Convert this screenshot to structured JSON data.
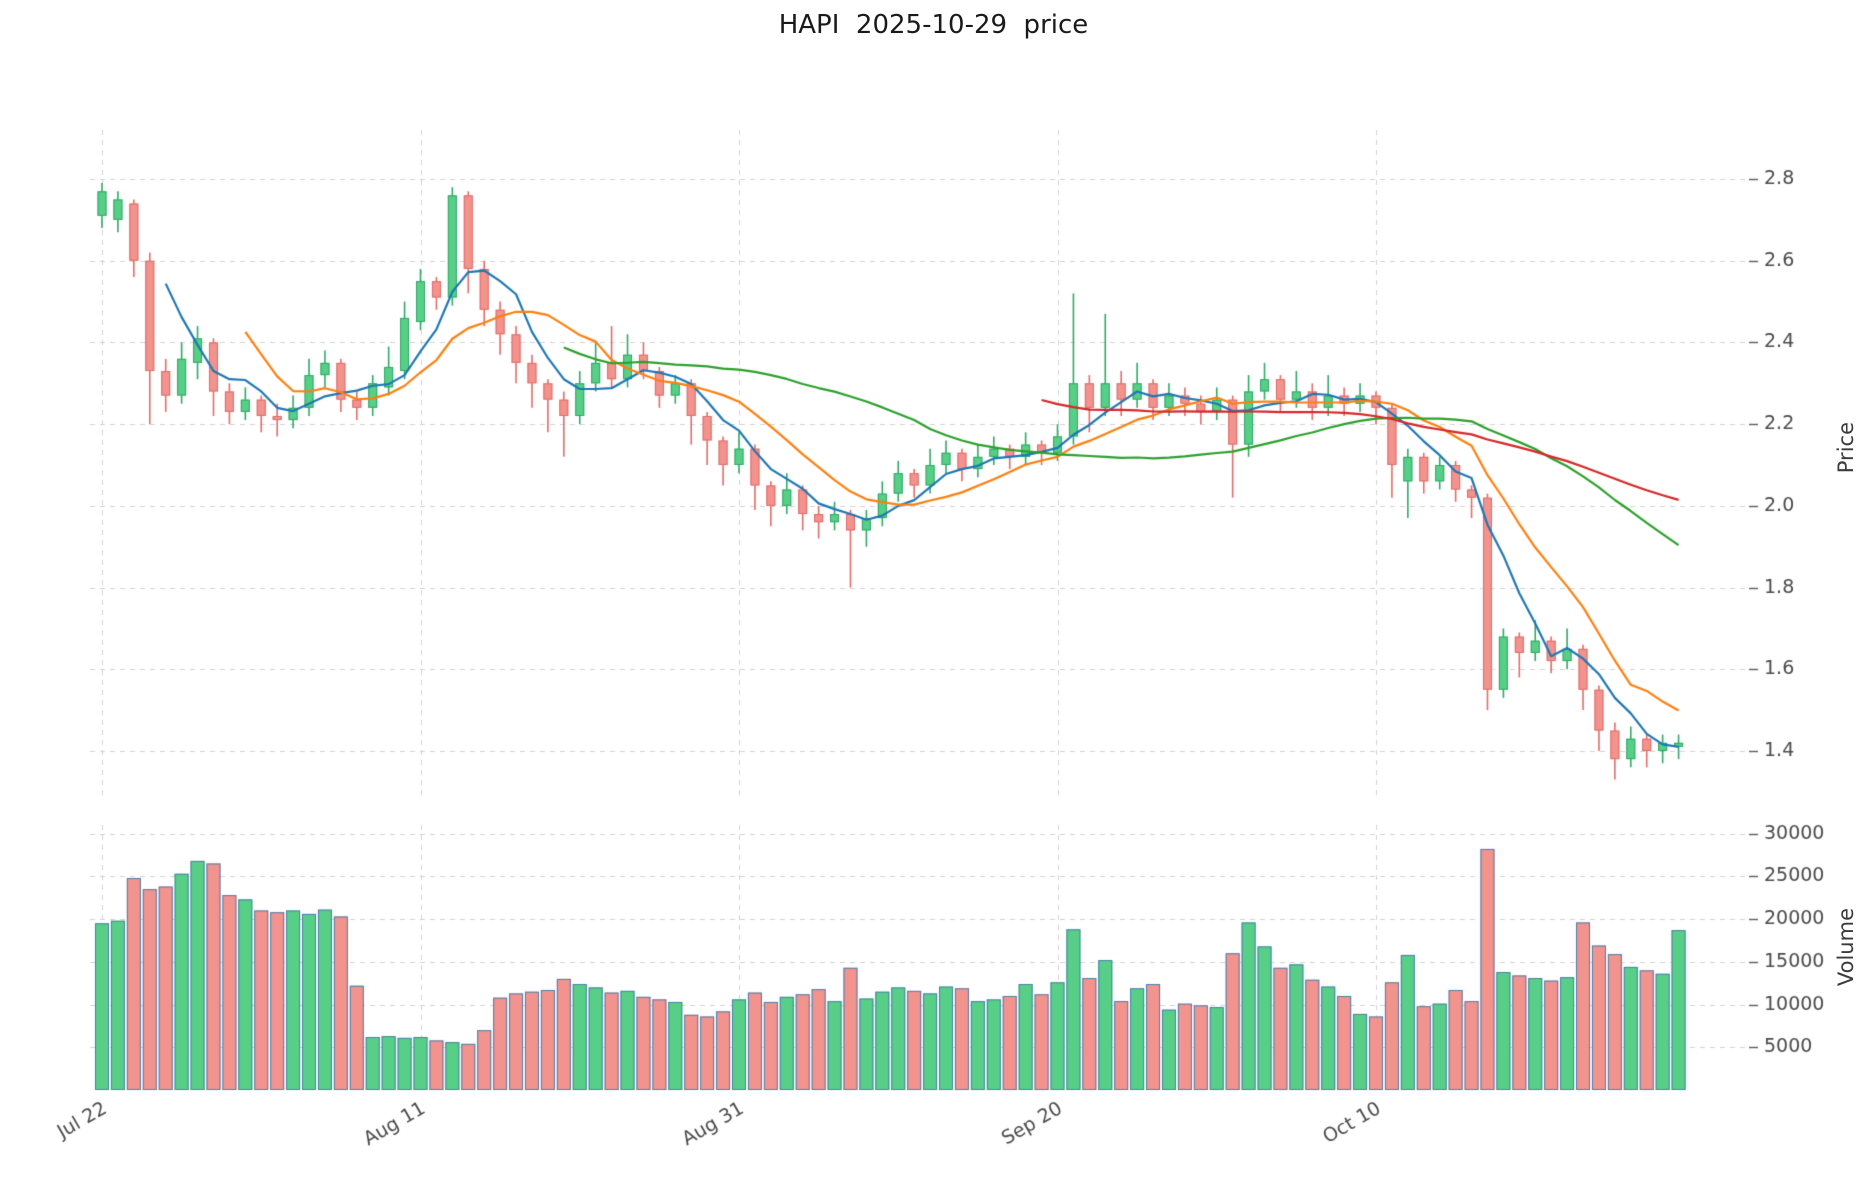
{
  "title": "HAPI  2025-10-29  price",
  "price_axis_label": "Price",
  "volume_axis_label": "Volume",
  "chart_data": {
    "type": "candlestick+volume",
    "title": "HAPI  2025-10-29  price",
    "x_ticks": [
      {
        "index": 0,
        "label": "Jul 22"
      },
      {
        "index": 20,
        "label": "Aug 11"
      },
      {
        "index": 40,
        "label": "Aug 31"
      },
      {
        "index": 60,
        "label": "Sep 20"
      },
      {
        "index": 80,
        "label": "Oct 10"
      }
    ],
    "price_ticks": [
      1.4,
      1.6,
      1.8,
      2.0,
      2.2,
      2.4,
      2.6,
      2.8
    ],
    "volume_ticks": [
      5000,
      10000,
      15000,
      20000,
      25000,
      30000
    ],
    "price_range": [
      1.28,
      2.92
    ],
    "volume_max": 31000,
    "grid": true,
    "moving_averages": [
      {
        "name": "MA5",
        "window": 5,
        "color": "#1f77b4"
      },
      {
        "name": "MA10",
        "window": 10,
        "color": "#ff7f0e"
      },
      {
        "name": "MA30",
        "window": 30,
        "color": "#2ca02c"
      },
      {
        "name": "MA60",
        "window": 60,
        "color": "#d62728"
      }
    ],
    "colors": {
      "candle_up": "#57cf87",
      "candle_up_edge": "#2fa866",
      "candle_down": "#f2938e",
      "candle_down_edge": "#e06c67",
      "volume_edge": "#4a7fae",
      "grid": "#d2d2d2",
      "tick_mark": "#5a5a5a",
      "tick_text": "#4a4a4a"
    },
    "columns": [
      "date",
      "open",
      "high",
      "low",
      "close",
      "volume"
    ],
    "rows": [
      [
        "2025-07-22",
        2.71,
        2.79,
        2.68,
        2.77,
        19500
      ],
      [
        "2025-07-23",
        2.7,
        2.77,
        2.67,
        2.75,
        19800
      ],
      [
        "2025-07-24",
        2.74,
        2.75,
        2.56,
        2.6,
        24800
      ],
      [
        "2025-07-25",
        2.6,
        2.62,
        2.2,
        2.33,
        23500
      ],
      [
        "2025-07-26",
        2.33,
        2.36,
        2.23,
        2.27,
        23800
      ],
      [
        "2025-07-27",
        2.27,
        2.4,
        2.25,
        2.36,
        25300
      ],
      [
        "2025-07-28",
        2.35,
        2.44,
        2.31,
        2.41,
        26800
      ],
      [
        "2025-07-29",
        2.4,
        2.41,
        2.22,
        2.28,
        26500
      ],
      [
        "2025-07-30",
        2.28,
        2.3,
        2.2,
        2.23,
        22800
      ],
      [
        "2025-07-31",
        2.23,
        2.29,
        2.21,
        2.26,
        22300
      ],
      [
        "2025-08-01",
        2.26,
        2.27,
        2.18,
        2.22,
        21000
      ],
      [
        "2025-08-02",
        2.22,
        2.25,
        2.17,
        2.21,
        20800
      ],
      [
        "2025-08-03",
        2.21,
        2.27,
        2.19,
        2.24,
        21000
      ],
      [
        "2025-08-04",
        2.24,
        2.36,
        2.22,
        2.32,
        20600
      ],
      [
        "2025-08-05",
        2.32,
        2.38,
        2.29,
        2.35,
        21100
      ],
      [
        "2025-08-06",
        2.35,
        2.36,
        2.23,
        2.26,
        20300
      ],
      [
        "2025-08-07",
        2.26,
        2.28,
        2.21,
        2.24,
        12200
      ],
      [
        "2025-08-08",
        2.24,
        2.32,
        2.22,
        2.3,
        6200
      ],
      [
        "2025-08-09",
        2.29,
        2.39,
        2.27,
        2.34,
        6300
      ],
      [
        "2025-08-10",
        2.33,
        2.5,
        2.31,
        2.46,
        6100
      ],
      [
        "2025-08-11",
        2.45,
        2.58,
        2.43,
        2.55,
        6200
      ],
      [
        "2025-08-12",
        2.55,
        2.56,
        2.48,
        2.51,
        5800
      ],
      [
        "2025-08-13",
        2.51,
        2.78,
        2.49,
        2.76,
        5600
      ],
      [
        "2025-08-14",
        2.76,
        2.77,
        2.52,
        2.58,
        5400
      ],
      [
        "2025-08-15",
        2.58,
        2.6,
        2.44,
        2.48,
        7000
      ],
      [
        "2025-08-16",
        2.48,
        2.5,
        2.37,
        2.42,
        10800
      ],
      [
        "2025-08-17",
        2.42,
        2.44,
        2.3,
        2.35,
        11300
      ],
      [
        "2025-08-18",
        2.35,
        2.37,
        2.24,
        2.3,
        11500
      ],
      [
        "2025-08-19",
        2.3,
        2.31,
        2.18,
        2.26,
        11700
      ],
      [
        "2025-08-20",
        2.26,
        2.28,
        2.12,
        2.22,
        13000
      ],
      [
        "2025-08-21",
        2.22,
        2.33,
        2.2,
        2.3,
        12400
      ],
      [
        "2025-08-22",
        2.3,
        2.4,
        2.28,
        2.35,
        12000
      ],
      [
        "2025-08-23",
        2.35,
        2.44,
        2.29,
        2.31,
        11400
      ],
      [
        "2025-08-24",
        2.31,
        2.42,
        2.29,
        2.37,
        11600
      ],
      [
        "2025-08-25",
        2.37,
        2.4,
        2.31,
        2.33,
        10900
      ],
      [
        "2025-08-26",
        2.33,
        2.34,
        2.24,
        2.27,
        10600
      ],
      [
        "2025-08-27",
        2.27,
        2.32,
        2.25,
        2.3,
        10300
      ],
      [
        "2025-08-28",
        2.3,
        2.31,
        2.15,
        2.22,
        8800
      ],
      [
        "2025-08-29",
        2.22,
        2.23,
        2.1,
        2.16,
        8600
      ],
      [
        "2025-08-30",
        2.16,
        2.17,
        2.05,
        2.1,
        9200
      ],
      [
        "2025-08-31",
        2.1,
        2.18,
        2.08,
        2.14,
        10600
      ],
      [
        "2025-09-01",
        2.14,
        2.15,
        1.99,
        2.05,
        11400
      ],
      [
        "2025-09-02",
        2.05,
        2.06,
        1.95,
        2.0,
        10300
      ],
      [
        "2025-09-03",
        2.0,
        2.08,
        1.98,
        2.04,
        10900
      ],
      [
        "2025-09-04",
        2.04,
        2.05,
        1.94,
        1.98,
        11200
      ],
      [
        "2025-09-05",
        1.98,
        2.0,
        1.92,
        1.96,
        11800
      ],
      [
        "2025-09-06",
        1.96,
        2.01,
        1.94,
        1.98,
        10400
      ],
      [
        "2025-09-07",
        1.98,
        1.99,
        1.8,
        1.94,
        14300
      ],
      [
        "2025-09-08",
        1.94,
        1.99,
        1.9,
        1.97,
        10700
      ],
      [
        "2025-09-09",
        1.97,
        2.06,
        1.95,
        2.03,
        11500
      ],
      [
        "2025-09-10",
        2.03,
        2.11,
        2.01,
        2.08,
        12000
      ],
      [
        "2025-09-11",
        2.08,
        2.09,
        2.02,
        2.05,
        11600
      ],
      [
        "2025-09-12",
        2.05,
        2.14,
        2.03,
        2.1,
        11300
      ],
      [
        "2025-09-13",
        2.1,
        2.16,
        2.08,
        2.13,
        12100
      ],
      [
        "2025-09-14",
        2.13,
        2.14,
        2.06,
        2.09,
        11900
      ],
      [
        "2025-09-15",
        2.09,
        2.15,
        2.07,
        2.12,
        10400
      ],
      [
        "2025-09-16",
        2.12,
        2.17,
        2.1,
        2.14,
        10600
      ],
      [
        "2025-09-17",
        2.14,
        2.15,
        2.09,
        2.12,
        11000
      ],
      [
        "2025-09-18",
        2.12,
        2.18,
        2.1,
        2.15,
        12400
      ],
      [
        "2025-09-19",
        2.15,
        2.16,
        2.1,
        2.13,
        11200
      ],
      [
        "2025-09-20",
        2.13,
        2.2,
        2.11,
        2.17,
        12600
      ],
      [
        "2025-09-21",
        2.17,
        2.52,
        2.15,
        2.3,
        18800
      ],
      [
        "2025-09-22",
        2.3,
        2.32,
        2.18,
        2.24,
        13100
      ],
      [
        "2025-09-23",
        2.24,
        2.47,
        2.22,
        2.3,
        15200
      ],
      [
        "2025-09-24",
        2.3,
        2.33,
        2.22,
        2.26,
        10400
      ],
      [
        "2025-09-25",
        2.26,
        2.35,
        2.24,
        2.3,
        11900
      ],
      [
        "2025-09-26",
        2.3,
        2.31,
        2.21,
        2.24,
        12400
      ],
      [
        "2025-09-27",
        2.24,
        2.3,
        2.22,
        2.27,
        9400
      ],
      [
        "2025-09-28",
        2.27,
        2.29,
        2.22,
        2.25,
        10100
      ],
      [
        "2025-09-29",
        2.25,
        2.27,
        2.2,
        2.23,
        9900
      ],
      [
        "2025-09-30",
        2.23,
        2.29,
        2.21,
        2.26,
        9700
      ],
      [
        "2025-10-01",
        2.26,
        2.27,
        2.02,
        2.15,
        16000
      ],
      [
        "2025-10-02",
        2.15,
        2.32,
        2.12,
        2.28,
        19600
      ],
      [
        "2025-10-03",
        2.28,
        2.35,
        2.26,
        2.31,
        16800
      ],
      [
        "2025-10-04",
        2.31,
        2.32,
        2.23,
        2.26,
        14300
      ],
      [
        "2025-10-05",
        2.26,
        2.33,
        2.24,
        2.28,
        14700
      ],
      [
        "2025-10-06",
        2.28,
        2.3,
        2.21,
        2.24,
        12900
      ],
      [
        "2025-10-07",
        2.24,
        2.32,
        2.22,
        2.27,
        12100
      ],
      [
        "2025-10-08",
        2.27,
        2.29,
        2.22,
        2.25,
        11000
      ],
      [
        "2025-10-09",
        2.25,
        2.3,
        2.23,
        2.27,
        8900
      ],
      [
        "2025-10-10",
        2.27,
        2.28,
        2.2,
        2.24,
        8600
      ],
      [
        "2025-10-11",
        2.24,
        2.25,
        2.02,
        2.1,
        12600
      ],
      [
        "2025-10-12",
        2.06,
        2.14,
        1.97,
        2.12,
        15800
      ],
      [
        "2025-10-13",
        2.12,
        2.13,
        2.03,
        2.06,
        9800
      ],
      [
        "2025-10-14",
        2.06,
        2.12,
        2.04,
        2.1,
        10100
      ],
      [
        "2025-10-15",
        2.1,
        2.11,
        2.01,
        2.04,
        11700
      ],
      [
        "2025-10-16",
        2.04,
        2.05,
        1.97,
        2.02,
        10400
      ],
      [
        "2025-10-17",
        2.02,
        2.03,
        1.5,
        1.55,
        28200
      ],
      [
        "2025-10-18",
        1.55,
        1.7,
        1.53,
        1.68,
        13800
      ],
      [
        "2025-10-19",
        1.68,
        1.69,
        1.58,
        1.64,
        13400
      ],
      [
        "2025-10-20",
        1.64,
        1.72,
        1.62,
        1.67,
        13100
      ],
      [
        "2025-10-21",
        1.67,
        1.68,
        1.59,
        1.62,
        12800
      ],
      [
        "2025-10-22",
        1.62,
        1.7,
        1.6,
        1.65,
        13200
      ],
      [
        "2025-10-23",
        1.65,
        1.66,
        1.5,
        1.55,
        19600
      ],
      [
        "2025-10-24",
        1.55,
        1.56,
        1.4,
        1.45,
        16900
      ],
      [
        "2025-10-25",
        1.45,
        1.47,
        1.33,
        1.38,
        15900
      ],
      [
        "2025-10-26",
        1.38,
        1.46,
        1.36,
        1.43,
        14400
      ],
      [
        "2025-10-27",
        1.43,
        1.44,
        1.36,
        1.4,
        14000
      ],
      [
        "2025-10-28",
        1.4,
        1.44,
        1.37,
        1.42,
        13600
      ],
      [
        "2025-10-29",
        1.41,
        1.44,
        1.38,
        1.42,
        18700
      ]
    ]
  }
}
